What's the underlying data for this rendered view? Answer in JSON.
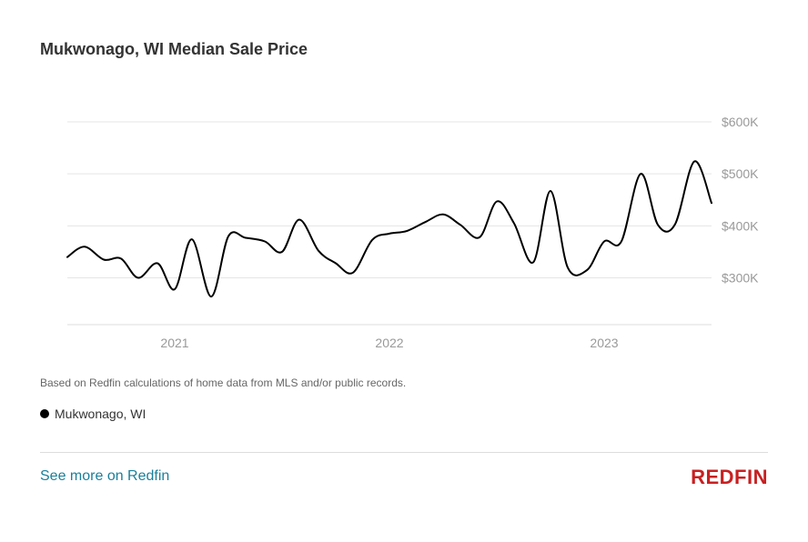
{
  "header": {
    "title": "Mukwonago, WI Median Sale Price"
  },
  "footnote": "Based on Redfin calculations of home data from MLS and/or public records.",
  "legend": {
    "label": "Mukwonago, WI",
    "color": "#000000"
  },
  "footer": {
    "link_text": "See more on Redfin",
    "logo_text": "REDFIN",
    "logo_color": "#c82021",
    "link_color": "#1a7f9a"
  },
  "chart_data": {
    "type": "line",
    "title": "Mukwonago, WI Median Sale Price",
    "xlabel": "",
    "ylabel": "",
    "x_ticks": [
      {
        "label": "2021",
        "t": 2021.0
      },
      {
        "label": "2022",
        "t": 2022.0
      },
      {
        "label": "2023",
        "t": 2023.0
      }
    ],
    "y_ticks": [
      {
        "label": "$300K",
        "v": 300000
      },
      {
        "label": "$400K",
        "v": 400000
      },
      {
        "label": "$500K",
        "v": 500000
      },
      {
        "label": "$600K",
        "v": 600000
      }
    ],
    "ylim": [
      210000,
      600000
    ],
    "xlim": [
      2020.5,
      2023.5
    ],
    "grid": true,
    "series": [
      {
        "name": "Mukwonago, WI",
        "color": "#000000",
        "points": [
          [
            2020.5,
            340000
          ],
          [
            2020.58,
            360000
          ],
          [
            2020.67,
            335000
          ],
          [
            2020.75,
            337000
          ],
          [
            2020.83,
            300000
          ],
          [
            2020.92,
            328000
          ],
          [
            2021.0,
            278000
          ],
          [
            2021.08,
            374000
          ],
          [
            2021.17,
            264000
          ],
          [
            2021.25,
            380000
          ],
          [
            2021.33,
            377000
          ],
          [
            2021.42,
            370000
          ],
          [
            2021.5,
            350000
          ],
          [
            2021.58,
            412000
          ],
          [
            2021.67,
            352000
          ],
          [
            2021.75,
            328000
          ],
          [
            2021.83,
            310000
          ],
          [
            2021.92,
            373000
          ],
          [
            2022.0,
            385000
          ],
          [
            2022.08,
            390000
          ],
          [
            2022.17,
            408000
          ],
          [
            2022.25,
            422000
          ],
          [
            2022.33,
            402000
          ],
          [
            2022.42,
            378000
          ],
          [
            2022.5,
            447000
          ],
          [
            2022.58,
            405000
          ],
          [
            2022.67,
            330000
          ],
          [
            2022.75,
            467000
          ],
          [
            2022.83,
            320000
          ],
          [
            2022.92,
            315000
          ],
          [
            2023.0,
            370000
          ],
          [
            2023.08,
            370000
          ],
          [
            2023.17,
            500000
          ],
          [
            2023.25,
            402000
          ],
          [
            2023.33,
            403000
          ],
          [
            2023.42,
            524000
          ],
          [
            2023.5,
            444000
          ]
        ]
      }
    ]
  }
}
